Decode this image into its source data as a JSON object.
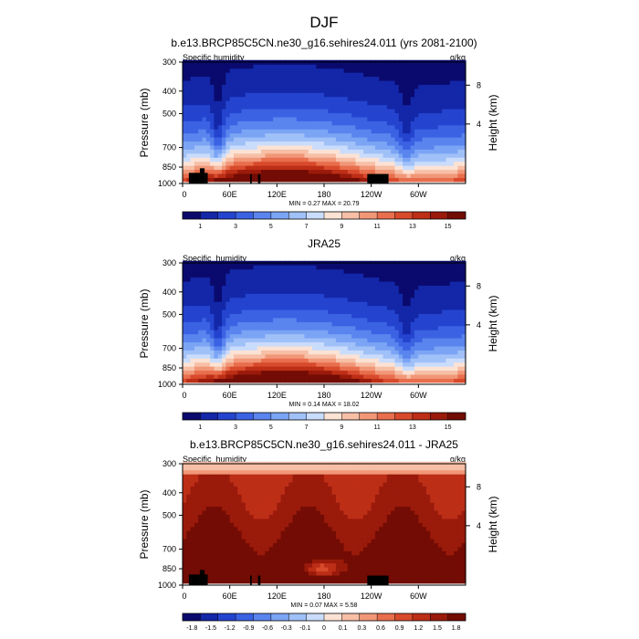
{
  "figure_title": "DJF",
  "chart_data": [
    {
      "type": "heatmap",
      "title": "b.e13.BRCP85C5CN.ne30_g16.sehires24.011 (yrs 2081-2100)",
      "left_label": "Specific humidity",
      "units": "g/kg",
      "ylabel": "Pressure (mb)",
      "ylabel_right": "Height (km)",
      "y_ticks": [
        "300",
        "400",
        "500",
        "700",
        "850",
        "1000"
      ],
      "y_right_ticks": [
        "8",
        "4"
      ],
      "x_ticks": [
        "0",
        "60E",
        "120E",
        "180",
        "120W",
        "60W"
      ],
      "stats": "MIN =   0.27  MAX =  20.79",
      "colorbar_labels": [
        "1",
        "3",
        "5",
        "7",
        "9",
        "11",
        "13",
        "15"
      ],
      "colorbar_levels": [
        0,
        1,
        2,
        3,
        4,
        5,
        6,
        7,
        8,
        9,
        10,
        11,
        12,
        13,
        14,
        15,
        16
      ],
      "min": 0.27,
      "max": 20.79,
      "terrain": true
    },
    {
      "type": "heatmap",
      "title": "JRA25",
      "left_label": "Specific_humidity",
      "units": "g/kg",
      "ylabel": "Pressure (mb)",
      "ylabel_right": "Height (km)",
      "y_ticks": [
        "300",
        "400",
        "500",
        "700",
        "850",
        "1000"
      ],
      "y_right_ticks": [
        "8",
        "4"
      ],
      "x_ticks": [
        "0",
        "60E",
        "120E",
        "180",
        "120W",
        "60W"
      ],
      "stats": "MIN =   0.14  MAX =  18.02",
      "colorbar_labels": [
        "1",
        "3",
        "5",
        "7",
        "9",
        "11",
        "13",
        "15"
      ],
      "colorbar_levels": [
        0,
        1,
        2,
        3,
        4,
        5,
        6,
        7,
        8,
        9,
        10,
        11,
        12,
        13,
        14,
        15,
        16
      ],
      "min": 0.14,
      "max": 18.02,
      "terrain": false
    },
    {
      "type": "heatmap",
      "title": "b.e13.BRCP85C5CN.ne30_g16.sehires24.011 - JRA25",
      "left_label": "Specific_humidity",
      "units": "g/kg",
      "ylabel": "Pressure (mb)",
      "ylabel_right": "Height (km)",
      "y_ticks": [
        "300",
        "400",
        "500",
        "700",
        "850",
        "1000"
      ],
      "y_right_ticks": [
        "8",
        "4"
      ],
      "x_ticks": [
        "0",
        "60E",
        "120E",
        "180",
        "120W",
        "60W"
      ],
      "stats": "MIN =   0.07  MAX =   5.58",
      "colorbar_labels": [
        "-1.8",
        "-1.5",
        "-1.2",
        "-0.9",
        "-0.6",
        "-0.3",
        "-0.1",
        "0",
        "0.1",
        "0.3",
        "0.6",
        "0.9",
        "1.2",
        "1.5",
        "1.8"
      ],
      "colorbar_levels": [
        -1.8,
        -1.5,
        -1.2,
        -0.9,
        -0.6,
        -0.3,
        -0.1,
        0,
        0.1,
        0.3,
        0.6,
        0.9,
        1.2,
        1.5,
        1.8
      ],
      "min": 0.07,
      "max": 5.58,
      "terrain": true
    }
  ]
}
